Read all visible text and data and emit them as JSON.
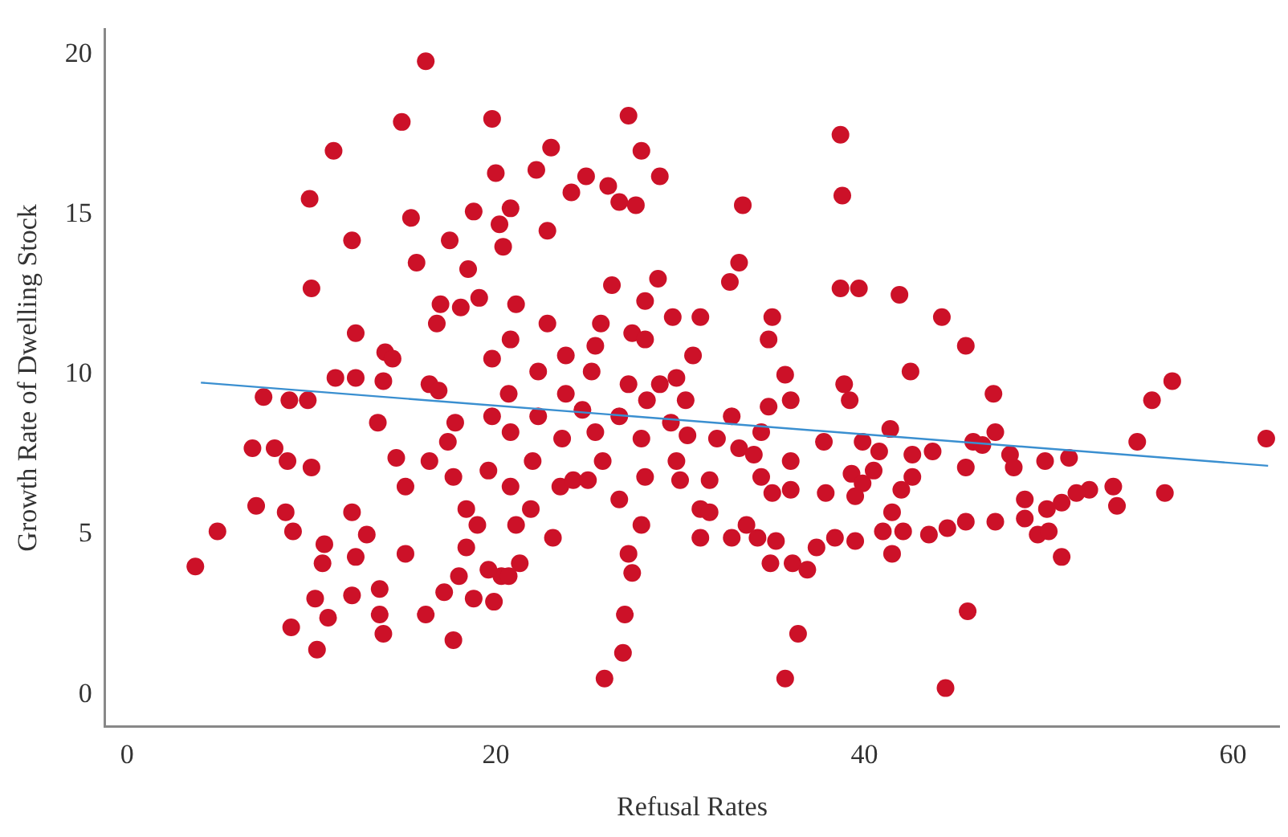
{
  "chart_data": {
    "type": "scatter",
    "xlabel": "Refusal Rates",
    "ylabel": "Growth Rate of Dwelling Stock",
    "xlim": [
      -1.2,
      62.5
    ],
    "ylim": [
      -1,
      20.8
    ],
    "xticks": [
      0,
      20,
      40,
      60
    ],
    "yticks": [
      0,
      5,
      10,
      15,
      20
    ],
    "grid": false,
    "legend": false,
    "marker": "circle",
    "series": [
      {
        "color": "#cc1128",
        "x": [
          3.7,
          4.9,
          6.8,
          7.4,
          8.8,
          9.8,
          8.0,
          8.7,
          10.0,
          7.0,
          8.6,
          9.0,
          8.9,
          10.2,
          10.6,
          10.7,
          10.9,
          10.3,
          12.2,
          13.7,
          12.4,
          12.2,
          13.0,
          13.7,
          13.9,
          15.1,
          11.3,
          12.4,
          9.9,
          10.0,
          11.2,
          12.2,
          12.4,
          13.6,
          13.9,
          14.0,
          14.4,
          14.6,
          15.1,
          16.4,
          14.9,
          15.4,
          15.7,
          16.4,
          16.9,
          17.4,
          17.8,
          16.8,
          17.0,
          18.1,
          16.2,
          17.5,
          18.5,
          19.1,
          18.8,
          17.7,
          18.4,
          19.0,
          18.4,
          18.0,
          17.2,
          16.2,
          17.7,
          19.9,
          20.3,
          18.8,
          19.6,
          19.6,
          19.8,
          19.8,
          19.8,
          20.0,
          20.2,
          20.4,
          20.8,
          21.1,
          20.8,
          20.7,
          20.8,
          20.8,
          21.1,
          21.3,
          20.7,
          21.9,
          22.0,
          22.3,
          22.3,
          22.8,
          22.8,
          22.2,
          23.0,
          24.1,
          23.8,
          23.8,
          23.6,
          23.5,
          23.1,
          24.2,
          25.0,
          24.7,
          25.2,
          25.4,
          25.7,
          26.3,
          26.7,
          24.9,
          26.1,
          25.4,
          25.8,
          26.7,
          26.7,
          27.2,
          27.4,
          28.1,
          28.1,
          28.2,
          27.9,
          28.1,
          27.9,
          27.2,
          27.0,
          25.9,
          26.9,
          27.4,
          27.9,
          27.6,
          27.2,
          28.9,
          28.8,
          28.9,
          29.5,
          29.8,
          30.0,
          30.3,
          30.7,
          31.1,
          29.8,
          29.6,
          30.4,
          31.1,
          31.1,
          31.6,
          32.0,
          31.6,
          32.8,
          32.8,
          33.2,
          33.6,
          34.0,
          34.4,
          34.4,
          34.2,
          34.8,
          35.0,
          35.2,
          33.2,
          32.7,
          33.4,
          35.0,
          34.8,
          35.7,
          36.0,
          36.0,
          36.0,
          34.9,
          36.1,
          36.9,
          36.4,
          35.7,
          37.4,
          37.8,
          37.9,
          38.4,
          38.7,
          38.8,
          38.7,
          38.9,
          39.2,
          39.7,
          41.9,
          44.2,
          45.5,
          42.5,
          47.0,
          55.6,
          56.7,
          54.8,
          61.8,
          39.9,
          40.8,
          42.6,
          43.7,
          41.4,
          45.9,
          46.4,
          47.1,
          47.9,
          48.1,
          49.8,
          51.1,
          39.3,
          39.9,
          40.5,
          42.6,
          45.5,
          39.5,
          42.0,
          41.5,
          50.7,
          49.4,
          50.0,
          48.7,
          47.1,
          45.5,
          44.5,
          43.5,
          42.1,
          41.0,
          41.5,
          39.5,
          45.6,
          44.4,
          56.3,
          53.5,
          53.7,
          52.2,
          51.5,
          50.7,
          49.9,
          48.7
        ],
        "values": [
          4.0,
          5.1,
          7.7,
          9.3,
          9.2,
          9.2,
          7.7,
          7.3,
          7.1,
          5.9,
          5.7,
          5.1,
          2.1,
          3.0,
          4.1,
          4.7,
          2.4,
          1.4,
          3.1,
          3.3,
          4.3,
          5.7,
          5.0,
          2.5,
          1.9,
          4.4,
          9.9,
          9.9,
          15.5,
          12.7,
          17.0,
          14.2,
          11.3,
          8.5,
          9.8,
          10.7,
          10.5,
          7.4,
          6.5,
          7.3,
          17.9,
          14.9,
          13.5,
          9.7,
          9.5,
          7.9,
          8.5,
          11.6,
          12.2,
          12.1,
          19.8,
          14.2,
          13.3,
          12.4,
          15.1,
          6.8,
          5.8,
          5.3,
          4.6,
          3.7,
          3.2,
          2.5,
          1.7,
          2.9,
          3.7,
          3.0,
          3.9,
          7.0,
          8.7,
          10.5,
          18.0,
          16.3,
          14.7,
          14.0,
          15.2,
          12.2,
          11.1,
          9.4,
          8.2,
          6.5,
          5.3,
          4.1,
          3.7,
          5.8,
          7.3,
          8.7,
          10.1,
          11.6,
          14.5,
          16.4,
          17.1,
          15.7,
          10.6,
          9.4,
          8.0,
          6.5,
          4.9,
          6.7,
          6.7,
          8.9,
          10.1,
          10.9,
          11.6,
          12.8,
          15.4,
          16.2,
          15.9,
          8.2,
          7.3,
          6.1,
          8.7,
          9.7,
          11.3,
          12.3,
          11.1,
          9.2,
          8.0,
          6.8,
          5.3,
          4.4,
          2.5,
          0.5,
          1.3,
          3.8,
          17.0,
          15.3,
          18.1,
          16.2,
          13.0,
          9.7,
          8.5,
          7.3,
          6.7,
          9.2,
          10.6,
          11.8,
          9.9,
          11.8,
          8.1,
          5.8,
          4.9,
          6.7,
          8.0,
          5.7,
          8.7,
          4.9,
          7.7,
          5.3,
          7.5,
          8.2,
          6.8,
          4.9,
          9.0,
          6.3,
          4.8,
          13.5,
          12.9,
          15.3,
          11.8,
          11.1,
          10.0,
          9.2,
          7.3,
          6.4,
          4.1,
          4.1,
          3.9,
          1.9,
          0.5,
          4.6,
          7.9,
          6.3,
          4.9,
          17.5,
          15.6,
          12.7,
          9.7,
          9.2,
          12.7,
          12.5,
          11.8,
          10.9,
          10.1,
          9.4,
          9.2,
          9.8,
          7.9,
          8.0,
          7.9,
          7.6,
          7.5,
          7.6,
          8.3,
          7.9,
          7.8,
          8.2,
          7.5,
          7.1,
          7.3,
          7.4,
          6.9,
          6.6,
          7.0,
          6.8,
          7.1,
          6.2,
          6.4,
          5.7,
          4.3,
          5.0,
          5.1,
          5.5,
          5.4,
          5.4,
          5.2,
          5.0,
          5.1,
          5.1,
          4.4,
          4.8,
          2.6,
          0.2,
          6.3,
          6.5,
          5.9,
          6.4,
          6.3,
          6.0,
          5.8,
          6.1
        ]
      },
      {
        "type": "line",
        "color": "#3a8fd0",
        "marker": "none",
        "x": [
          4.0,
          61.9
        ],
        "values": [
          9.75,
          7.15
        ]
      }
    ]
  }
}
